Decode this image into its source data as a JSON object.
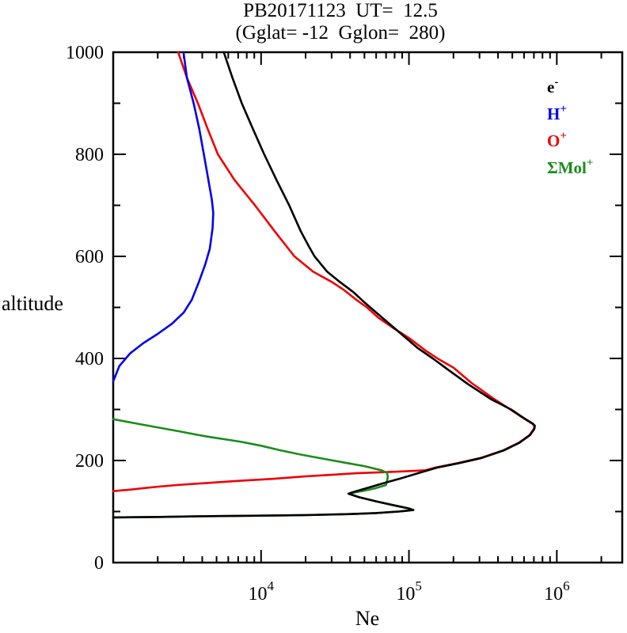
{
  "chart_data": {
    "type": "line",
    "title": "PB20171123  UT=  12.5",
    "subtitle": "(Gglat= -12  Gglon=  280)",
    "xlabel": "Ne",
    "ylabel": "altitude",
    "x_scale": "log",
    "x_range": [
      1000,
      2770000
    ],
    "y_range": [
      0,
      1000
    ],
    "x_major_tick_exponents": [
      4,
      5,
      6
    ],
    "x_tick_base": "10",
    "y_major_ticks": [
      0,
      200,
      400,
      600,
      800,
      1000
    ],
    "y_minor_ticks": [
      100,
      300,
      500,
      700,
      900
    ],
    "grid": "off",
    "legend_position": "top-right-inside",
    "legend": [
      {
        "label": "e",
        "sup": "-",
        "color": "#000000"
      },
      {
        "label": "H",
        "sup": "+",
        "color": "#0000ee"
      },
      {
        "label": "O",
        "sup": "+",
        "color": "#ee0000"
      },
      {
        "label": "ΣMol",
        "sup": "+",
        "color": "#1a8c1a"
      }
    ],
    "series": [
      {
        "id": "O+",
        "name": "O+",
        "color": "#ee0000",
        "points": [
          [
            2750,
            1000
          ],
          [
            3150,
            950
          ],
          [
            3740,
            900
          ],
          [
            4350,
            850
          ],
          [
            5100,
            800
          ],
          [
            6600,
            750
          ],
          [
            9100,
            700
          ],
          [
            12300,
            650
          ],
          [
            16800,
            600
          ],
          [
            22500,
            570
          ],
          [
            30000,
            550
          ],
          [
            36000,
            535
          ],
          [
            44000,
            515
          ],
          [
            52000,
            500
          ],
          [
            62000,
            480
          ],
          [
            78000,
            460
          ],
          [
            100000,
            440
          ],
          [
            130000,
            415
          ],
          [
            160000,
            398
          ],
          [
            200000,
            382
          ],
          [
            265000,
            352
          ],
          [
            370000,
            322
          ],
          [
            485000,
            300
          ],
          [
            595000,
            283
          ],
          [
            685000,
            272
          ],
          [
            705000,
            268
          ],
          [
            700000,
            262
          ],
          [
            655000,
            250
          ],
          [
            555000,
            235
          ],
          [
            435000,
            220
          ],
          [
            305000,
            205
          ],
          [
            215000,
            195
          ],
          [
            150000,
            186
          ],
          [
            130000,
            181
          ],
          [
            81000,
            178
          ],
          [
            44000,
            175
          ],
          [
            30000,
            172
          ],
          [
            20000,
            169
          ],
          [
            12000,
            164
          ],
          [
            6900,
            160
          ],
          [
            4300,
            156
          ],
          [
            2700,
            152
          ],
          [
            1900,
            148
          ],
          [
            1300,
            143
          ],
          [
            1000,
            140
          ]
        ]
      },
      {
        "id": "Mol+",
        "name": "Sigma-Mol+",
        "color": "#1a8c1a",
        "points": [
          [
            1000,
            281
          ],
          [
            1600,
            270
          ],
          [
            2700,
            258
          ],
          [
            4300,
            247
          ],
          [
            7200,
            237
          ],
          [
            10000,
            229
          ],
          [
            13500,
            220
          ],
          [
            19000,
            211
          ],
          [
            27000,
            203
          ],
          [
            38000,
            195
          ],
          [
            50000,
            189
          ],
          [
            65000,
            181
          ],
          [
            71000,
            176
          ],
          [
            72000,
            168
          ],
          [
            71000,
            160
          ],
          [
            70000,
            152
          ],
          [
            60000,
            146
          ],
          [
            50000,
            141
          ],
          [
            39000,
            135
          ],
          [
            46000,
            128
          ],
          [
            60000,
            120
          ],
          [
            80000,
            112
          ],
          [
            100000,
            106
          ],
          [
            107000,
            103
          ],
          [
            85000,
            100
          ],
          [
            60000,
            97
          ],
          [
            40000,
            95
          ],
          [
            20000,
            93
          ],
          [
            10000,
            92
          ],
          [
            4600,
            91
          ],
          [
            2100,
            89.5
          ],
          [
            1000,
            88.5
          ]
        ]
      },
      {
        "id": "H+",
        "name": "H+",
        "color": "#0000ee",
        "points": [
          [
            2990,
            1000
          ],
          [
            3150,
            950
          ],
          [
            3500,
            900
          ],
          [
            3820,
            850
          ],
          [
            4100,
            800
          ],
          [
            4400,
            750
          ],
          [
            4650,
            710
          ],
          [
            4750,
            685
          ],
          [
            4700,
            655
          ],
          [
            4500,
            615
          ],
          [
            4200,
            585
          ],
          [
            3800,
            550
          ],
          [
            3400,
            515
          ],
          [
            3000,
            490
          ],
          [
            2500,
            468
          ],
          [
            2000,
            448
          ],
          [
            1600,
            430
          ],
          [
            1300,
            410
          ],
          [
            1100,
            385
          ],
          [
            1000,
            355
          ]
        ]
      },
      {
        "id": "e-",
        "name": "e-",
        "color": "#000000",
        "points": [
          [
            5600,
            1000
          ],
          [
            6400,
            950
          ],
          [
            7400,
            900
          ],
          [
            8800,
            850
          ],
          [
            10500,
            800
          ],
          [
            12700,
            750
          ],
          [
            15500,
            700
          ],
          [
            18500,
            650
          ],
          [
            21000,
            620
          ],
          [
            23000,
            600
          ],
          [
            28000,
            570
          ],
          [
            34000,
            550
          ],
          [
            42000,
            530
          ],
          [
            50000,
            510
          ],
          [
            60000,
            490
          ],
          [
            83000,
            455
          ],
          [
            115000,
            420
          ],
          [
            145000,
            400
          ],
          [
            180000,
            380
          ],
          [
            250000,
            350
          ],
          [
            360000,
            320
          ],
          [
            490000,
            300
          ],
          [
            600000,
            283
          ],
          [
            690000,
            272
          ],
          [
            710000,
            268
          ],
          [
            705000,
            262
          ],
          [
            660000,
            250
          ],
          [
            560000,
            235
          ],
          [
            440000,
            220
          ],
          [
            310000,
            205
          ],
          [
            220000,
            195
          ],
          [
            155000,
            186
          ],
          [
            135000,
            181
          ],
          [
            115000,
            175
          ],
          [
            88000,
            165
          ],
          [
            70000,
            157
          ],
          [
            55000,
            148
          ],
          [
            44000,
            140
          ],
          [
            39000,
            135
          ],
          [
            46000,
            128
          ],
          [
            60000,
            120
          ],
          [
            80000,
            112
          ],
          [
            100000,
            106
          ],
          [
            107000,
            103
          ],
          [
            85000,
            100
          ],
          [
            60000,
            97
          ],
          [
            40000,
            95
          ],
          [
            20000,
            93
          ],
          [
            10000,
            92
          ],
          [
            4600,
            91
          ],
          [
            2100,
            89.5
          ],
          [
            1000,
            88.5
          ]
        ]
      }
    ]
  }
}
